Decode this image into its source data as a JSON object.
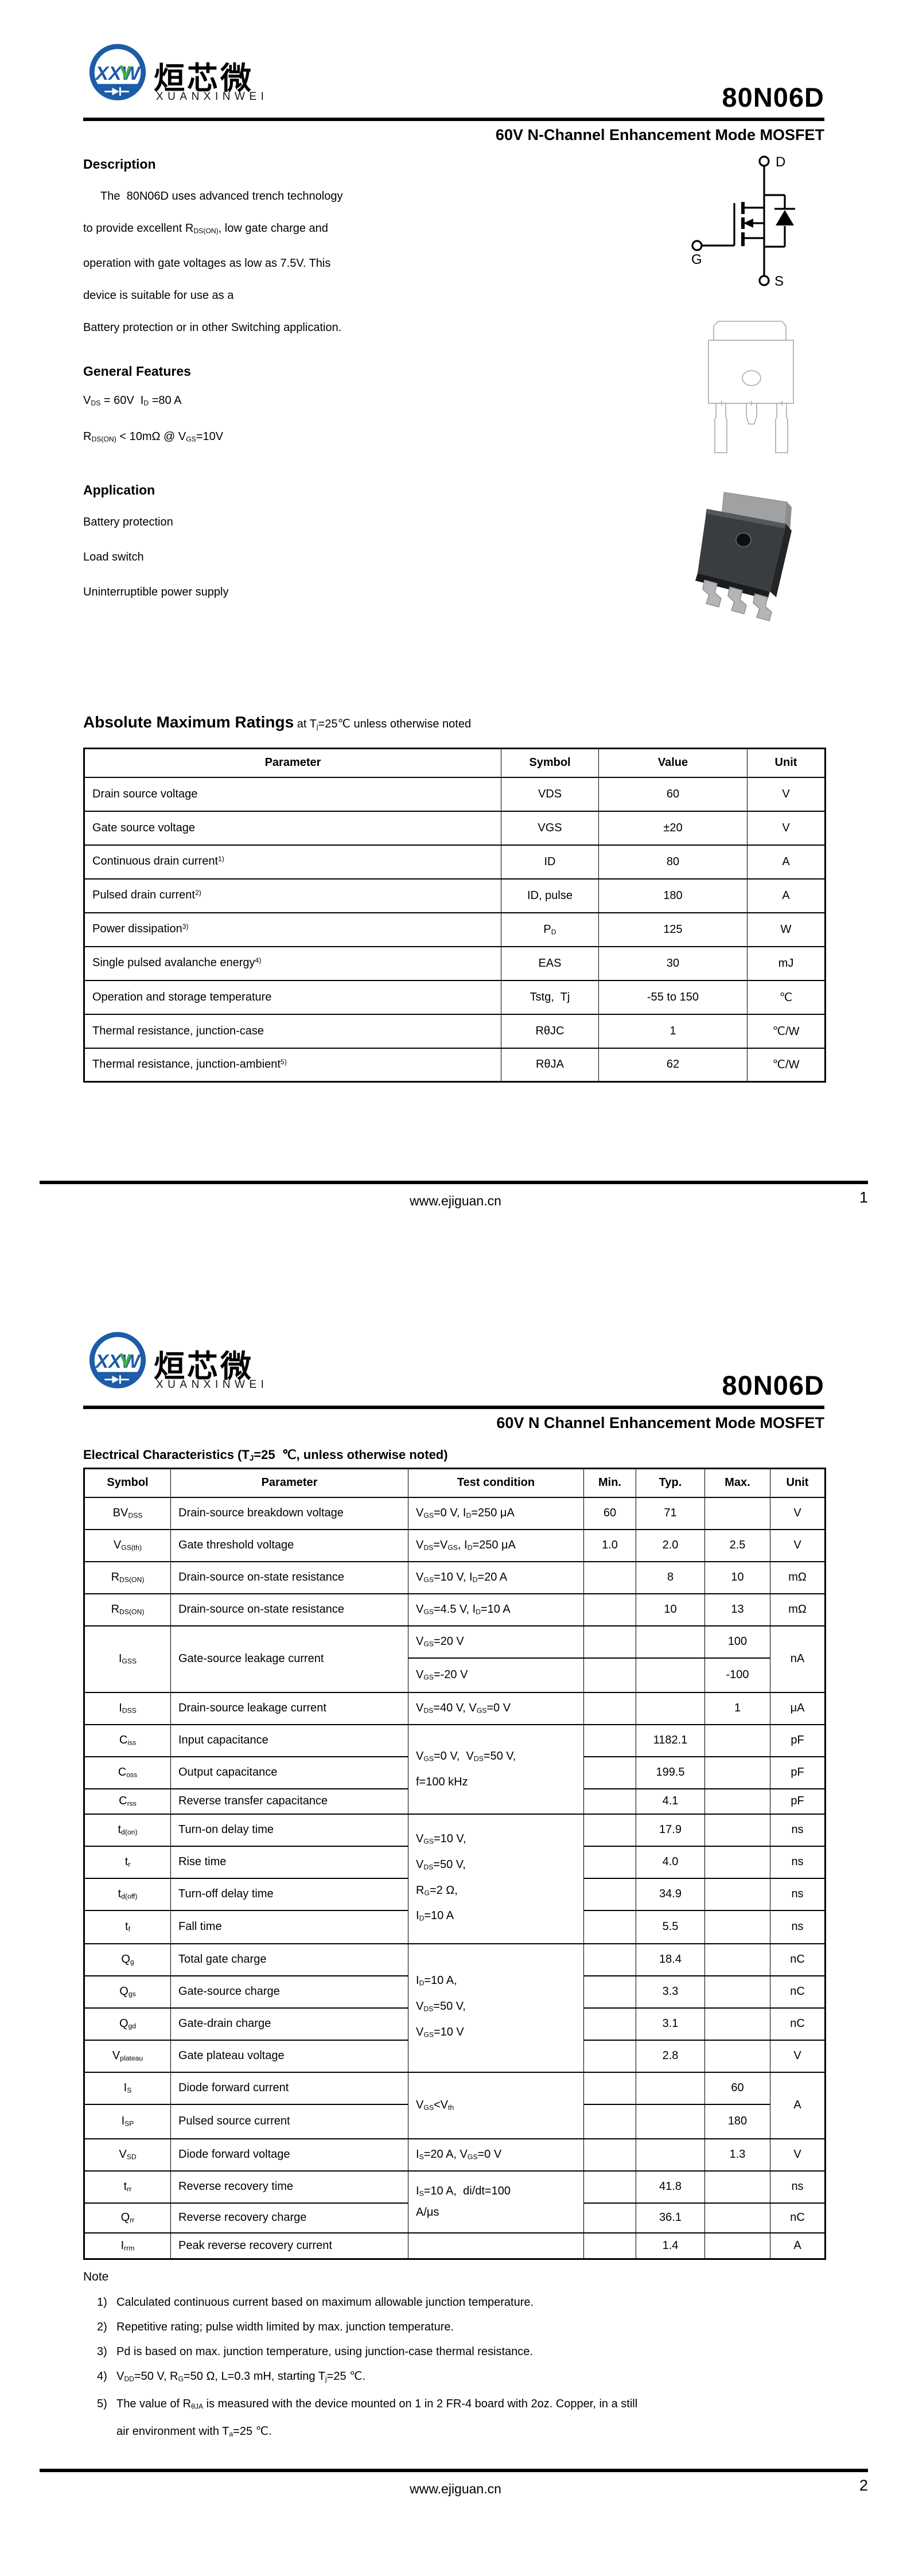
{
  "brand": {
    "name_cn": "烜芯微",
    "name_en": "XUANXINWEI",
    "monogram": "XXW",
    "blue": "#1c5ca8",
    "green": "#3fae49"
  },
  "footer": {
    "url": "www.ejiguan.cn"
  },
  "page1": {
    "part_number": "80N06D",
    "subtitle": "60V N-Channel Enhancement Mode MOSFET",
    "page_number": "1",
    "description": {
      "heading": "Description",
      "lines": [
        "The  80N06D uses advanced trench technology",
        "to provide excellent R~DS(ON)~, low gate charge and",
        "operation with gate voltages as low as 7.5V. This",
        "device is suitable for use as a",
        "Battery protection or in other Switching application."
      ]
    },
    "general_features": {
      "heading": "General Features",
      "lines": [
        "V~DS~ = 60V  I~D~ =80 A",
        "R~DS(ON)~ < 10mΩ @ V~GS~=10V"
      ]
    },
    "application": {
      "heading": "Application",
      "items": [
        "Battery protection",
        "Load switch",
        "Uninterruptible power supply"
      ]
    },
    "mosfet_symbol": {
      "drain": "D",
      "gate": "G",
      "source": "S"
    },
    "abs_max": {
      "title": "Absolute Maximum Ratings",
      "subtitle": " at T~j~=25℃ unless otherwise noted",
      "headers": [
        "Parameter",
        "Symbol",
        "Value",
        "Unit"
      ],
      "rows": [
        {
          "parameter": "Drain source voltage",
          "symbol": "VDS",
          "value": "60",
          "unit": "V"
        },
        {
          "parameter": "Gate source voltage",
          "symbol": "VGS",
          "value": "±20",
          "unit": "V"
        },
        {
          "parameter": "Continuous drain current^1)^",
          "symbol": "ID",
          "value": "80",
          "unit": "A"
        },
        {
          "parameter": "Pulsed drain current^2)^",
          "symbol": "ID, pulse",
          "value": "180",
          "unit": "A"
        },
        {
          "parameter": "Power dissipation^3)^",
          "symbol": "P~D~",
          "value": "125",
          "unit": "W"
        },
        {
          "parameter": "Single pulsed avalanche energy^4)^",
          "symbol": "EAS",
          "value": "30",
          "unit": "mJ"
        },
        {
          "parameter": "Operation and storage temperature",
          "symbol": "Tstg,  Tj",
          "value": "-55 to 150",
          "unit": "℃"
        },
        {
          "parameter": "Thermal resistance, junction-case",
          "symbol": "RθJC",
          "value": "1",
          "unit": "℃/W"
        },
        {
          "parameter": "Thermal resistance, junction-ambient^5)^",
          "symbol": "RθJA",
          "value": "62",
          "unit": "℃/W"
        }
      ]
    }
  },
  "page2": {
    "part_number": "80N06D",
    "subtitle": "60V N Channel Enhancement Mode MOSFET",
    "page_number": "2",
    "ec": {
      "heading": "Electrical Characteristics (T~J~=25  ℃, unless otherwise noted)",
      "headers": [
        "Symbol",
        "Parameter",
        "Test condition",
        "Min.",
        "Typ.",
        "Max.",
        "Unit"
      ],
      "rows": {
        "bvdss": {
          "sym": "BV~DSS~",
          "param": "Drain-source breakdown voltage",
          "cond": "V~GS~=0 V, I~D~=250 μA",
          "min": "60",
          "typ": "71",
          "unit": "V"
        },
        "vgsth": {
          "sym": "V~GS(th)~",
          "param": "Gate threshold voltage",
          "cond": "V~DS~=V~GS~, I~D~=250 μA",
          "min": "1.0",
          "typ": "2.0",
          "max": "2.5",
          "unit": "V"
        },
        "rdson10": {
          "sym": "R~DS(ON)~",
          "param": "Drain-source on-state resistance",
          "cond": "V~GS~=10 V, I~D~=20 A",
          "typ": "8",
          "max": "10",
          "unit": "mΩ"
        },
        "rdson45": {
          "sym": "R~DS(ON)~",
          "param": "Drain-source on-state resistance",
          "cond": "V~GS~=4.5 V, I~D~=10 A",
          "typ": "10",
          "max": "13",
          "unit": "mΩ"
        },
        "igss": {
          "sym": "I~GSS~",
          "param": "Gate-source leakage current",
          "cond_pos": "V~GS~=20 V",
          "cond_neg": "V~GS~=-20 V",
          "max_pos": "100",
          "max_neg": "-100",
          "unit": "nA"
        },
        "idss": {
          "sym": "I~DSS~",
          "param": "Drain-source leakage current",
          "cond": "V~DS~=40 V, V~GS~=0 V",
          "max": "1",
          "unit": "μA"
        },
        "cap_cond": [
          "V~GS~=0 V,  V~DS~=50 V,",
          "f=100 kHz"
        ],
        "ciss": {
          "sym": "C~iss~",
          "param": "Input capacitance",
          "typ": "1182.1",
          "unit": "pF"
        },
        "coss": {
          "sym": "C~oss~",
          "param": "Output capacitance",
          "typ": "199.5",
          "unit": "pF"
        },
        "crss": {
          "sym": "C~rss~",
          "param": "Reverse transfer capacitance",
          "typ": "4.1",
          "unit": "pF"
        },
        "sw_cond": [
          "V~GS~=10 V,",
          "V~DS~=50 V,",
          "R~G~=2 Ω,",
          "I~D~=10 A"
        ],
        "tdon": {
          "sym": "t~d(on)~",
          "param": "Turn-on delay time",
          "typ": "17.9",
          "unit": "ns"
        },
        "tr": {
          "sym": "t~r~",
          "param": "Rise time",
          "typ": "4.0",
          "unit": "ns"
        },
        "tdoff": {
          "sym": "t~d(off)~",
          "param": "Turn-off delay time",
          "typ": "34.9",
          "unit": "ns"
        },
        "tf": {
          "sym": "t~f~",
          "param": "Fall time",
          "typ": "5.5",
          "unit": "ns"
        },
        "chg_cond": [
          "I~D~=10 A,",
          "V~DS~=50 V,",
          "V~GS~=10 V"
        ],
        "qg": {
          "sym": "Q~g~",
          "param": "Total gate charge",
          "typ": "18.4",
          "unit": "nC"
        },
        "qgs": {
          "sym": "Q~gs~",
          "param": "Gate-source charge",
          "typ": "3.3",
          "unit": "nC"
        },
        "qgd": {
          "sym": "Q~gd~",
          "param": "Gate-drain charge",
          "typ": "3.1",
          "unit": "nC"
        },
        "vplateau": {
          "sym": "V~plateau~",
          "param": "Gate plateau voltage",
          "typ": "2.8",
          "unit": "V"
        },
        "is": {
          "sym": "I~S~",
          "param": "Diode forward current",
          "cond": "V~GS~<V~th~",
          "max": "60",
          "unit": "A"
        },
        "isp": {
          "sym": "I~SP~",
          "param": "Pulsed source current",
          "max": "180"
        },
        "vsd": {
          "sym": "V~SD~",
          "param": "Diode forward voltage",
          "cond": "I~S~=20 A, V~GS~=0 V",
          "max": "1.3",
          "unit": "V"
        },
        "trr_cond": [
          "I~S~=10 A,  di/dt=100",
          "A/μs"
        ],
        "trr": {
          "sym": "t~rr~",
          "param": "Reverse recovery time",
          "typ": "41.8",
          "unit": "ns"
        },
        "qrr": {
          "sym": "Q~rr~",
          "param": "Reverse recovery charge",
          "typ": "36.1",
          "unit": "nC"
        },
        "irrm": {
          "sym": "I~rrm~",
          "param": "Peak reverse recovery current",
          "typ": "1.4",
          "unit": "A"
        }
      }
    },
    "notes": {
      "heading": "Note",
      "items": [
        {
          "num": "1)",
          "lines": [
            "Calculated continuous current based on maximum allowable junction temperature."
          ]
        },
        {
          "num": "2)",
          "lines": [
            "Repetitive rating; pulse width limited by max. junction temperature."
          ]
        },
        {
          "num": "3)",
          "lines": [
            "Pd is based on max. junction temperature, using junction-case thermal resistance."
          ]
        },
        {
          "num": "4)",
          "lines": [
            "V~DD~=50 V, R~G~=50 Ω, L=0.3 mH, starting T~j~=25 ℃."
          ]
        },
        {
          "num": "5)",
          "lines": [
            "The value of R~θJA~ is measured with the device mounted on 1 in 2 FR-4 board with 2oz. Copper, in a still",
            "air environment with T~a~=25 ℃."
          ]
        }
      ]
    }
  }
}
